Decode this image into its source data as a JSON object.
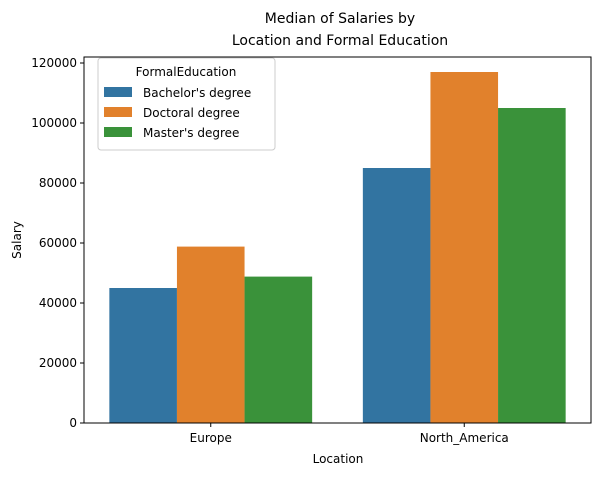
{
  "chart_data": {
    "type": "bar",
    "title_lines": [
      "Median of Salaries by",
      "Location and Formal Education"
    ],
    "xlabel": "Location",
    "ylabel": "Salary",
    "categories": [
      "Europe",
      "North_America"
    ],
    "series": [
      {
        "name": "Bachelor's degree",
        "color": "#3274a1",
        "values": [
          45000,
          85000
        ]
      },
      {
        "name": "Doctoral degree",
        "color": "#e1812c",
        "values": [
          58800,
          117000
        ]
      },
      {
        "name": "Master's degree",
        "color": "#3a923a",
        "values": [
          48800,
          105000
        ]
      }
    ],
    "legend": {
      "title": "FormalEducation",
      "placement": "top-left"
    },
    "ylim": [
      0,
      122000
    ],
    "yticks": [
      0,
      20000,
      40000,
      60000,
      80000,
      100000,
      120000
    ],
    "ytick_labels": [
      "0",
      "20000",
      "40000",
      "60000",
      "80000",
      "100000",
      "120000"
    ],
    "grid": false
  }
}
